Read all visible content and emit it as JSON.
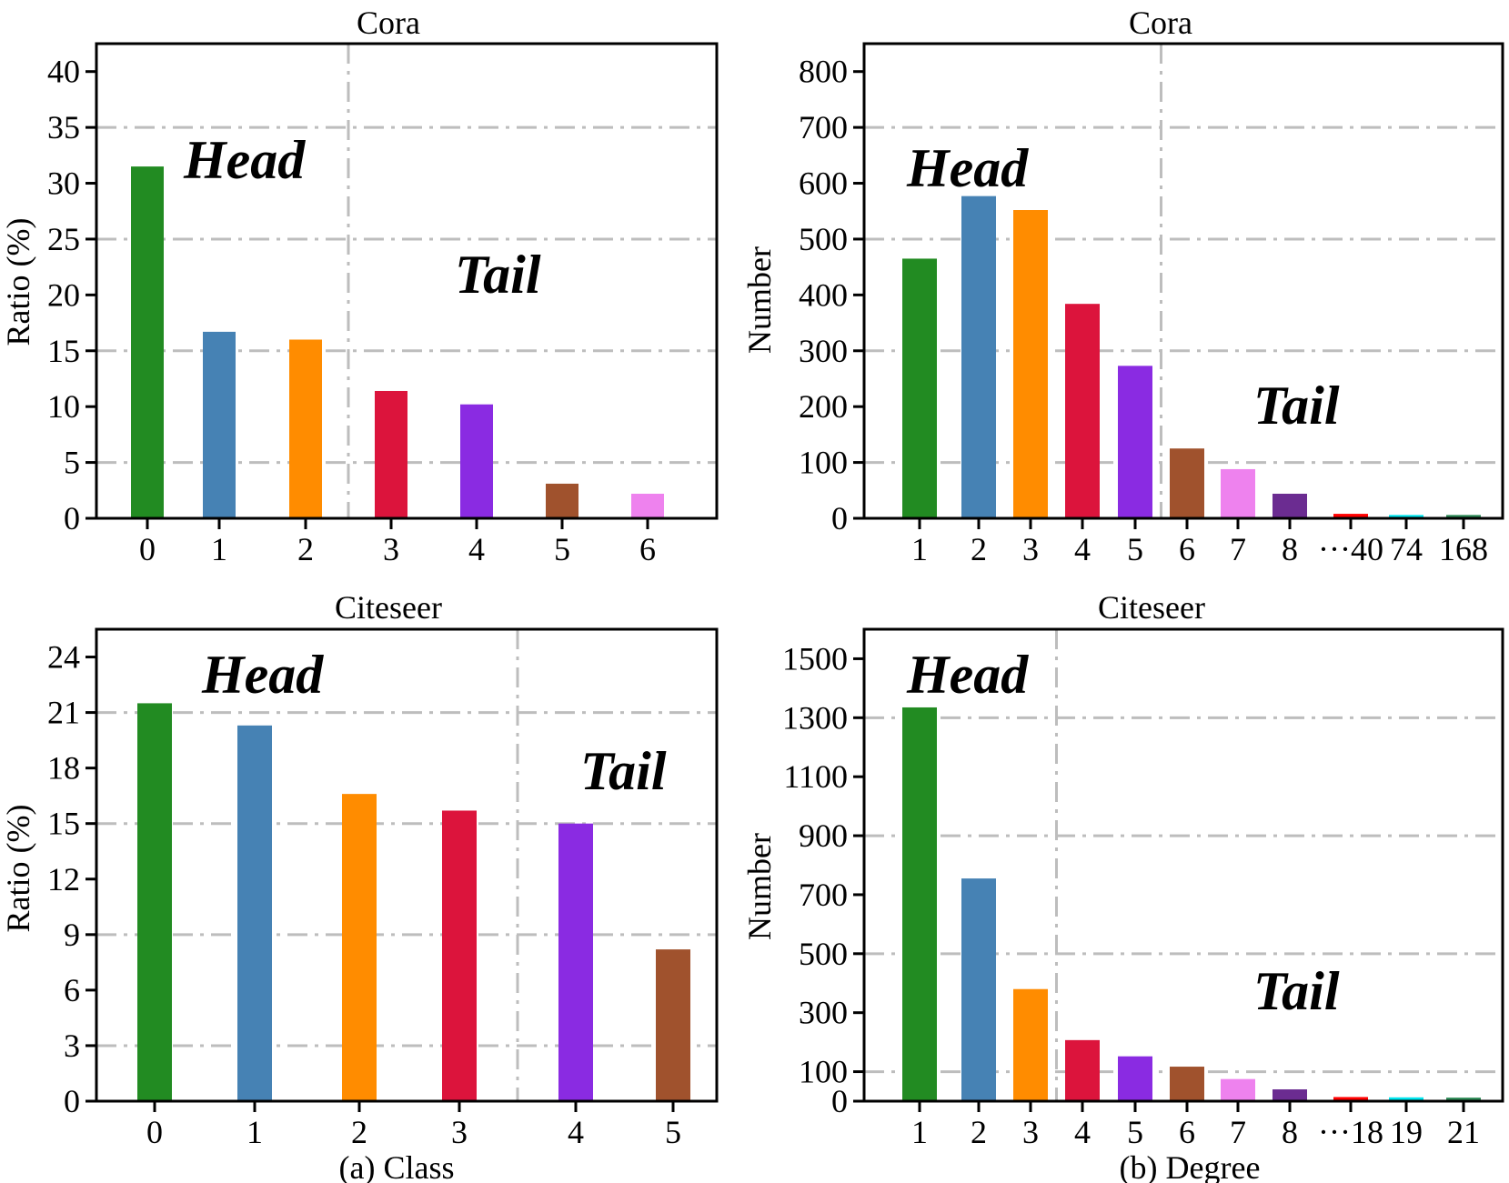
{
  "captions": {
    "left": "(a) Class",
    "right": "(b) Degree"
  },
  "colors": {
    "palette": [
      "#228b22",
      "#4682b4",
      "#ff8c00",
      "#dc143c",
      "#8a2be2",
      "#a0522d",
      "#ee82ee",
      "#6b2c91",
      "#ff0000",
      "#00e5ee",
      "#2e8b57"
    ],
    "grid": "#bdbdbd"
  },
  "chart_data": [
    {
      "type": "bar",
      "title": "Cora",
      "xlabel": "",
      "ylabel": "Ratio (%)",
      "ylim": [
        0,
        42.5
      ],
      "yticks": [
        0,
        5,
        10,
        15,
        20,
        25,
        30,
        35,
        40
      ],
      "categories": [
        "0",
        "1",
        "2",
        "3",
        "4",
        "5",
        "6"
      ],
      "values": [
        31.5,
        16.7,
        16.0,
        11.4,
        10.2,
        3.1,
        2.2
      ],
      "head_tail_split_after_index": 2,
      "head_label": "Head",
      "tail_label": "Tail",
      "grid": true
    },
    {
      "type": "bar",
      "title": "Cora",
      "xlabel": "",
      "ylabel": "Number",
      "ylim": [
        0,
        850
      ],
      "yticks": [
        0,
        100,
        200,
        300,
        400,
        500,
        600,
        700,
        800
      ],
      "categories": [
        "1",
        "2",
        "3",
        "4",
        "5",
        "6",
        "7",
        "8",
        "···40",
        "74",
        "168"
      ],
      "values": [
        465,
        577,
        552,
        384,
        273,
        125,
        88,
        44,
        8,
        6,
        6
      ],
      "head_tail_split_after_index": 4,
      "head_label": "Head",
      "tail_label": "Tail",
      "grid": true
    },
    {
      "type": "bar",
      "title": "Citeseer",
      "xlabel": "",
      "ylabel": "Ratio (%)",
      "ylim": [
        0,
        25.5
      ],
      "yticks": [
        0,
        3,
        6,
        9,
        12,
        15,
        18,
        21,
        24
      ],
      "categories": [
        "0",
        "1",
        "2",
        "3",
        "4",
        "5"
      ],
      "values": [
        21.5,
        20.3,
        16.6,
        15.7,
        15.0,
        8.2
      ],
      "head_tail_split_after_index": 3,
      "head_label": "Head",
      "tail_label": "Tail",
      "grid": true
    },
    {
      "type": "bar",
      "title": "Citeseer",
      "xlabel": "",
      "ylabel": "Number",
      "ylim": [
        0,
        1600
      ],
      "yticks": [
        0,
        100,
        300,
        500,
        700,
        900,
        1100,
        1300,
        1500
      ],
      "categories": [
        "1",
        "2",
        "3",
        "4",
        "5",
        "6",
        "7",
        "8",
        "···18",
        "19",
        "21"
      ],
      "values": [
        1335,
        755,
        380,
        207,
        152,
        117,
        75,
        40,
        14,
        13,
        12
      ],
      "head_tail_split_after_index": 2,
      "head_label": "Head",
      "tail_label": "Tail",
      "grid": true
    }
  ]
}
